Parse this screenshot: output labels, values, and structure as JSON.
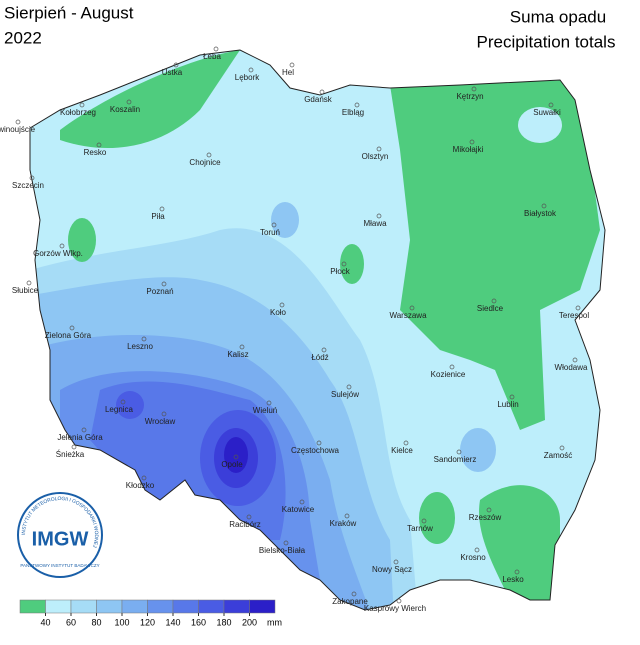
{
  "header": {
    "title": "Sierpień - August",
    "year": "2022",
    "subtitle_pl": "Suma opadu",
    "subtitle_en": "Precipitation totals"
  },
  "legend": {
    "colors": [
      "#4fcc7e",
      "#bdeefb",
      "#a6dcf6",
      "#8ec6f3",
      "#7aaef0",
      "#6792ed",
      "#5878e9",
      "#4a5ce4",
      "#3b3ed9",
      "#2b1fc8"
    ],
    "ticks": [
      40,
      60,
      80,
      100,
      120,
      140,
      160,
      180,
      200
    ],
    "unit": "mm"
  },
  "logo": {
    "text": "IMGW",
    "ring_top": "INSTYTUT METEOROLOGII I GOSPODARKI WODNEJ",
    "ring_bottom": "PAŃSTWOWY INSTYTUT BADAWCZY"
  },
  "cities": [
    "Ustka",
    "Łeba",
    "Hel",
    "Lębork",
    "Kołobrzeg",
    "Koszalin",
    "Gdańsk",
    "Elbląg",
    "Kętrzyn",
    "Suwałki",
    "Świnoujście",
    "Resko",
    "Chojnice",
    "Olsztyn",
    "Mikołajki",
    "Szczecin",
    "Białystok",
    "Piła",
    "Toruń",
    "Mława",
    "Gorzów Wlkp.",
    "Płock",
    "Słubice",
    "Poznań",
    "Koło",
    "Warszawa",
    "Siedlce",
    "Terespol",
    "Zielona Góra",
    "Leszno",
    "Kalisz",
    "Łódź",
    "Włodawa",
    "Kozienice",
    "Sulejów",
    "Lublin",
    "Legnica",
    "Wrocław",
    "Wieluń",
    "Jelenia Góra",
    "Częstochowa",
    "Kielce",
    "Sandomierz",
    "Zamość",
    "Śnieżka",
    "Opole",
    "Kłodzko",
    "Katowice",
    "Racibórz",
    "Kraków",
    "Tarnów",
    "Rzeszów",
    "Bielsko-Biała",
    "Krosno",
    "Nowy Sącz",
    "Lesko",
    "Zakopane",
    "Kasprowy Wierch"
  ]
}
